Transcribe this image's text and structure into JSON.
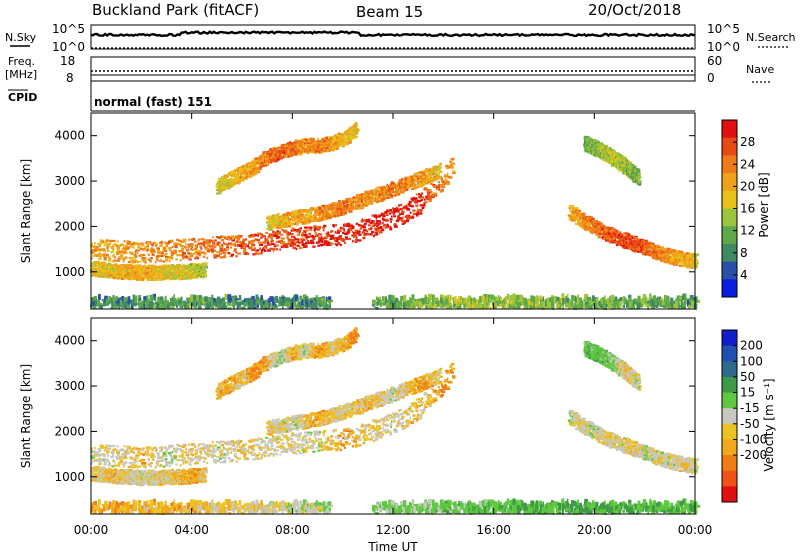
{
  "header": {
    "title": "Buckland Park (fitACF)",
    "beam": "Beam 15",
    "date": "20/Oct/2018"
  },
  "strips": {
    "nsky": {
      "label": "N.Sky",
      "left_ticks": [
        "10^5",
        "10^0"
      ],
      "right_label": "N.Search",
      "right_ticks": [
        "10^5",
        "10^0"
      ]
    },
    "freq": {
      "label_line1": "Freq.",
      "label_line2": "[MHz]",
      "left_ticks": [
        "18",
        "8"
      ],
      "right_label": "Nave",
      "right_ticks": [
        "60",
        "0"
      ]
    },
    "cpid": {
      "label": "CPID",
      "text": "normal (fast) 151"
    }
  },
  "colors": {
    "power_scale": [
      "#0a1ee0",
      "#2a4fa8",
      "#3f8a63",
      "#5fa84a",
      "#9cc43c",
      "#e8c21c",
      "#f0a21a",
      "#ee7a18",
      "#e84a14",
      "#e01010"
    ],
    "velocity_scale": [
      "#e01010",
      "#ee5214",
      "#f07c18",
      "#f0aa1c",
      "#ecc322",
      "#c8c8c0",
      "#60c840",
      "#3f9a48",
      "#2e6a8a",
      "#2050b0",
      "#1020c8"
    ]
  },
  "chart_data": [
    {
      "type": "heatmap",
      "title": "",
      "xlabel": "Time UT",
      "ylabel": "Slant Range [km]",
      "xlim": [
        0,
        24
      ],
      "ylim": [
        180,
        4500
      ],
      "x_ticks": [
        "00:00",
        "04:00",
        "08:00",
        "12:00",
        "16:00",
        "20:00",
        "00:00"
      ],
      "y_ticks": [
        "1000",
        "2000",
        "3000",
        "4000"
      ],
      "colorbar": {
        "label": "Power [dB]",
        "range": [
          0,
          32
        ],
        "ticks": [
          "4",
          "8",
          "12",
          "16",
          "20",
          "24",
          "28"
        ]
      },
      "series": [
        {
          "t": [
            0.0,
            1.0,
            2.0,
            3.0,
            4.0,
            5.0,
            6.0,
            7.0,
            8.0,
            9.0,
            10.0,
            11.0,
            12.0,
            12.8,
            13.4,
            13.9,
            14.3
          ],
          "range": [
            1450,
            1430,
            1400,
            1430,
            1480,
            1520,
            1550,
            1630,
            1700,
            1760,
            1800,
            1950,
            2150,
            2400,
            2700,
            3000,
            3250
          ],
          "power": [
            20,
            21,
            22,
            23,
            24,
            25,
            26,
            27,
            28,
            29,
            30,
            29,
            30,
            29,
            27,
            24,
            20
          ]
        },
        {
          "t": [
            0.0,
            1.0,
            2.0,
            3.0,
            4.0,
            4.5
          ],
          "range": [
            1050,
            980,
            950,
            960,
            990,
            1020
          ],
          "power": [
            18,
            19,
            20,
            18,
            16,
            14
          ]
        },
        {
          "t": [
            5.0,
            5.5,
            6.0,
            6.5,
            7.0,
            7.5,
            8.0,
            8.5,
            9.0,
            9.5,
            10.0,
            10.5
          ],
          "range": [
            2850,
            3000,
            3150,
            3300,
            3500,
            3600,
            3700,
            3750,
            3750,
            3800,
            3900,
            4100
          ],
          "power": [
            16,
            18,
            20,
            22,
            24,
            26,
            24,
            22,
            24,
            22,
            20,
            18
          ]
        },
        {
          "t": [
            7.0,
            8.0,
            9.0,
            10.0,
            11.0,
            12.0,
            13.0,
            13.8
          ],
          "range": [
            2050,
            2150,
            2250,
            2400,
            2600,
            2800,
            3000,
            3200
          ],
          "power": [
            18,
            20,
            22,
            24,
            22,
            24,
            22,
            18
          ]
        },
        {
          "t": [
            19.0,
            19.5,
            20.0,
            20.5,
            21.0,
            21.5,
            22.0,
            22.5,
            23.0,
            23.5,
            24.0
          ],
          "range": [
            2300,
            2100,
            1950,
            1800,
            1700,
            1600,
            1500,
            1400,
            1300,
            1250,
            1200
          ],
          "power": [
            20,
            22,
            24,
            26,
            27,
            28,
            26,
            24,
            22,
            20,
            18
          ]
        },
        {
          "t": [
            19.6,
            20.2,
            20.8,
            21.3,
            21.7
          ],
          "range": [
            3800,
            3650,
            3450,
            3250,
            3050
          ],
          "power": [
            12,
            14,
            16,
            14,
            12
          ]
        },
        {
          "t": [
            0,
            4,
            8,
            12,
            16,
            20,
            24
          ],
          "range": [
            270,
            270,
            270,
            270,
            270,
            270,
            270
          ],
          "power": [
            8,
            10,
            8,
            12,
            14,
            12,
            10
          ]
        }
      ]
    },
    {
      "type": "heatmap",
      "title": "",
      "xlabel": "Time UT",
      "ylabel": "Slant Range [km]",
      "xlim": [
        0,
        24
      ],
      "ylim": [
        180,
        4500
      ],
      "x_ticks": [
        "00:00",
        "04:00",
        "08:00",
        "12:00",
        "16:00",
        "20:00",
        "00:00"
      ],
      "y_ticks": [
        "1000",
        "2000",
        "3000",
        "4000"
      ],
      "colorbar": {
        "label": "Velocity [m s⁻¹]",
        "range": [
          -250,
          250
        ],
        "ticks": [
          "200",
          "100",
          "50",
          "15",
          "-15",
          "-50",
          "-100",
          "-200"
        ]
      },
      "series": [
        {
          "t": [
            0.0,
            1.0,
            2.0,
            3.0,
            4.0,
            5.0,
            6.0,
            7.0,
            8.0,
            9.0,
            10.0,
            11.0,
            12.0,
            12.8,
            13.4,
            13.9,
            14.3
          ],
          "range": [
            1450,
            1430,
            1400,
            1430,
            1480,
            1520,
            1550,
            1630,
            1700,
            1760,
            1800,
            1950,
            2150,
            2400,
            2700,
            3000,
            3250
          ],
          "velocity": [
            0,
            -10,
            -30,
            0,
            -20,
            0,
            -30,
            0,
            -10,
            0,
            -40,
            -20,
            0,
            -30,
            -20,
            -60,
            -40
          ]
        },
        {
          "t": [
            0.0,
            1.0,
            2.0,
            3.0,
            4.0,
            4.5
          ],
          "range": [
            1050,
            980,
            950,
            960,
            990,
            1020
          ],
          "velocity": [
            -10,
            -30,
            0,
            -20,
            -40,
            -20
          ]
        },
        {
          "t": [
            5.0,
            5.5,
            6.0,
            6.5,
            7.0,
            7.5,
            8.0,
            8.5,
            9.0,
            9.5,
            10.0,
            10.5
          ],
          "range": [
            2850,
            3000,
            3150,
            3300,
            3500,
            3600,
            3700,
            3750,
            3750,
            3800,
            3900,
            4100
          ],
          "velocity": [
            -30,
            -40,
            -20,
            -60,
            -30,
            20,
            -40,
            0,
            -50,
            -20,
            -30,
            -60
          ]
        },
        {
          "t": [
            7.0,
            8.0,
            9.0,
            10.0,
            11.0,
            12.0,
            13.0,
            13.8
          ],
          "range": [
            2050,
            2150,
            2250,
            2400,
            2600,
            2800,
            3000,
            3200
          ],
          "velocity": [
            -20,
            0,
            -40,
            -10,
            -30,
            0,
            -50,
            -20
          ]
        },
        {
          "t": [
            19.0,
            19.5,
            20.0,
            20.5,
            21.0,
            21.5,
            22.0,
            22.5,
            23.0,
            23.5,
            24.0
          ],
          "range": [
            2300,
            2100,
            1950,
            1800,
            1700,
            1600,
            1500,
            1400,
            1300,
            1250,
            1200
          ],
          "velocity": [
            0,
            -10,
            0,
            -20,
            0,
            -30,
            0,
            -10,
            0,
            -20,
            0
          ]
        },
        {
          "t": [
            19.6,
            20.2,
            20.8,
            21.3,
            21.7
          ],
          "range": [
            3800,
            3650,
            3450,
            3250,
            3050
          ],
          "velocity": [
            30,
            40,
            20,
            -30,
            0
          ]
        },
        {
          "t": [
            0,
            4,
            8,
            12,
            16,
            20,
            24
          ],
          "range": [
            270,
            270,
            270,
            270,
            270,
            270,
            270
          ],
          "velocity": [
            -40,
            -30,
            0,
            20,
            40,
            60,
            40
          ]
        }
      ]
    }
  ]
}
